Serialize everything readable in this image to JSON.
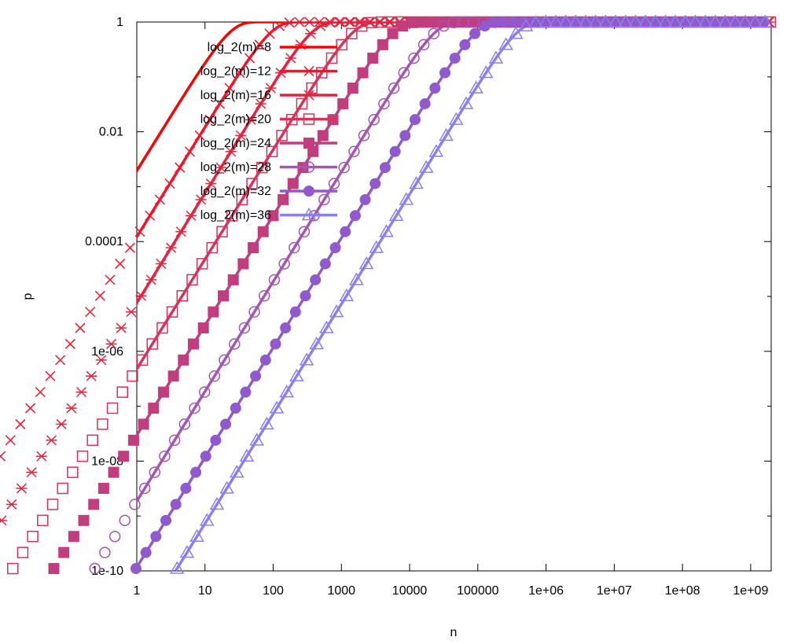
{
  "chart_data": {
    "type": "line",
    "title": "",
    "xlabel": "n",
    "ylabel": "p",
    "xscale": "log10",
    "yscale": "log10",
    "xlim": [
      1,
      2000000000
    ],
    "ylim": [
      1e-10,
      1
    ],
    "x_ticks": [
      1,
      10,
      100,
      1000,
      10000,
      100000,
      1000000,
      10000000,
      100000000,
      1000000000
    ],
    "x_tick_labels": [
      "1",
      "10",
      "100",
      "1000",
      "10000",
      "100000",
      "1e+06",
      "1e+07",
      "1e+08",
      "1e+09"
    ],
    "y_ticks": [
      1e-10,
      1e-08,
      1e-06,
      0.0001,
      0.01,
      1
    ],
    "y_tick_labels": [
      "1e-10",
      "1e-08",
      "1e-06",
      "0.0001",
      "0.01",
      "1"
    ],
    "grid": false,
    "legend_position": "top-left",
    "series": [
      {
        "name": "log_2(m)=8",
        "log2m": 8,
        "color": "#ff0000",
        "marker": "none"
      },
      {
        "name": "log_2(m)=12",
        "log2m": 12,
        "color": "#f81228",
        "marker": "x"
      },
      {
        "name": "log_2(m)=16",
        "log2m": 16,
        "color": "#e4233f",
        "marker": "star"
      },
      {
        "name": "log_2(m)=20",
        "log2m": 20,
        "color": "#d6325a",
        "marker": "open-square"
      },
      {
        "name": "log_2(m)=24",
        "log2m": 24,
        "color": "#c23d7e",
        "marker": "filled-square"
      },
      {
        "name": "log_2(m)=28",
        "log2m": 28,
        "color": "#a454b2",
        "marker": "open-circle"
      },
      {
        "name": "log_2(m)=32",
        "log2m": 32,
        "color": "#9059cd",
        "marker": "filled-circle"
      },
      {
        "name": "log_2(m)=36",
        "log2m": 36,
        "color": "#8a7ff0",
        "marker": "open-triangle"
      }
    ]
  }
}
